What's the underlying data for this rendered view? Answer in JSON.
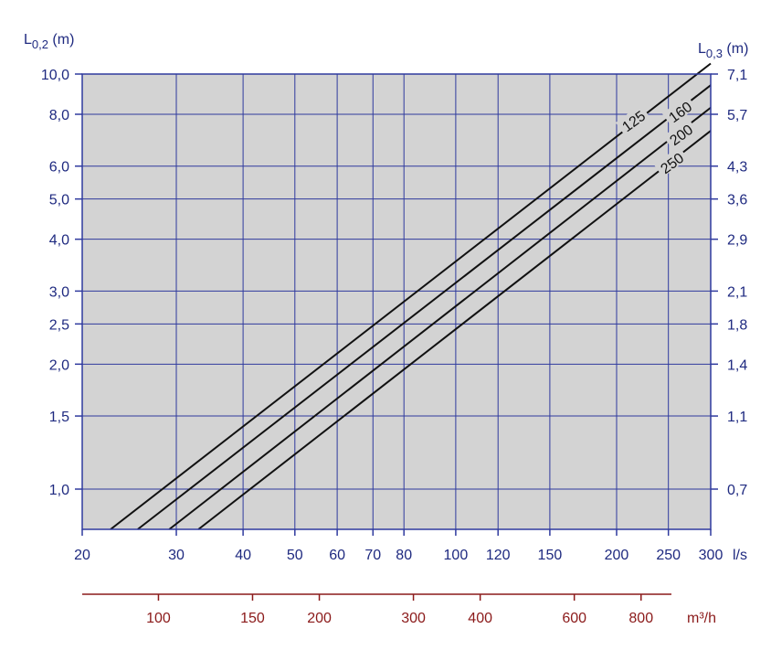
{
  "chart_data": {
    "type": "line",
    "x_scale": "log",
    "y_scale": "log",
    "grid": true,
    "left_axis": {
      "label_main": "L",
      "label_sub": "0,2",
      "label_unit": " (m)",
      "ticks": [
        1.0,
        1.5,
        2.0,
        2.5,
        3.0,
        4.0,
        5.0,
        6.0,
        8.0,
        10.0
      ],
      "tick_labels": [
        "1,0",
        "1,5",
        "2,0",
        "2,5",
        "3,0",
        "4,0",
        "5,0",
        "6,0",
        "8,0",
        "10,0"
      ],
      "range": [
        0.8,
        10.0
      ]
    },
    "right_axis": {
      "label_main": "L",
      "label_sub": "0,3",
      "label_unit": " (m)",
      "tick_labels": [
        "0,7",
        "1,1",
        "1,4",
        "1,8",
        "2,1",
        "2,9",
        "3,6",
        "4,3",
        "5,7",
        "7,1"
      ]
    },
    "bottom_axis": {
      "unit": "l/s",
      "ticks": [
        20,
        30,
        40,
        50,
        60,
        70,
        80,
        100,
        120,
        150,
        200,
        250,
        300
      ],
      "tick_labels": [
        "20",
        "30",
        "40",
        "50",
        "60",
        "70",
        "80",
        "100",
        "120",
        "150",
        "200",
        "250",
        "300"
      ],
      "range": [
        20,
        300
      ]
    },
    "secondary_x_axis": {
      "unit": "m³/h",
      "ticks": [
        100,
        150,
        200,
        300,
        400,
        600,
        800
      ],
      "tick_labels": [
        "100",
        "150",
        "200",
        "300",
        "400",
        "600",
        "800"
      ],
      "color": "#8b1a1a"
    },
    "series": [
      {
        "name": "125",
        "x": [
          22.6,
          300
        ],
        "y": [
          0.8,
          10.6
        ]
      },
      {
        "name": "160",
        "x": [
          25.4,
          300
        ],
        "y": [
          0.8,
          9.4
        ]
      },
      {
        "name": "200",
        "x": [
          29.1,
          300
        ],
        "y": [
          0.8,
          8.3
        ]
      },
      {
        "name": "250",
        "x": [
          33.0,
          300
        ],
        "y": [
          0.8,
          7.3
        ]
      }
    ],
    "colors": {
      "plot_background": "#d3d3d3",
      "grid": "#2f3a9e",
      "axis_text": "#1f2a80",
      "secondary_axis_text": "#8b1a1a",
      "series_line": "#111111"
    }
  }
}
